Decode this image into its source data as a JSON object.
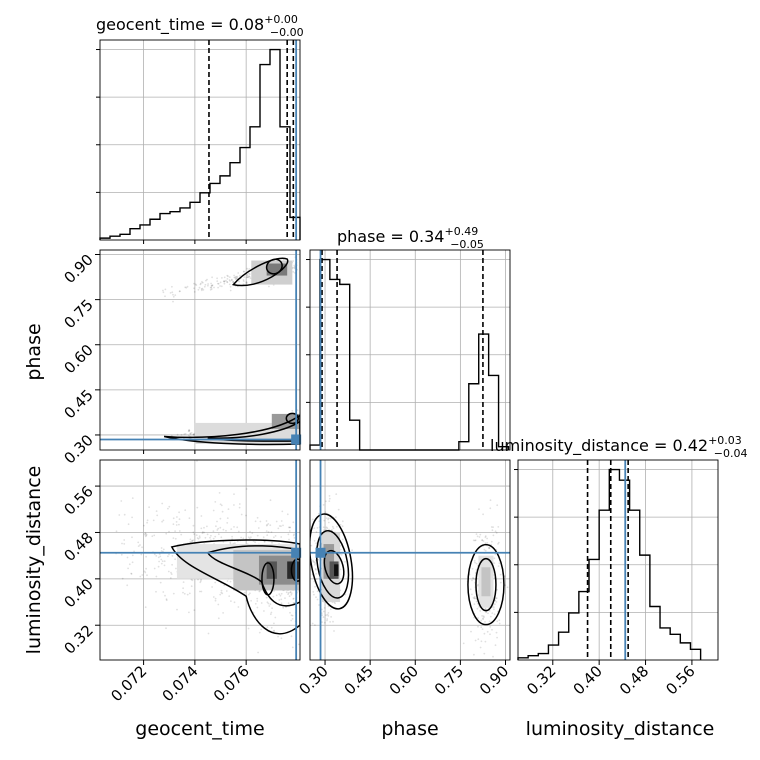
{
  "chart_data": {
    "type": "corner",
    "parameters": [
      "geocent_time",
      "phase",
      "luminosity_distance"
    ],
    "axis_labels": [
      "geocent_time",
      "phase",
      "luminosity_distance"
    ],
    "titles": [
      {
        "name": "geocent_time",
        "text": "geocent_time = 0.08",
        "sup": "+0.00",
        "sub": "−0.00"
      },
      {
        "name": "phase",
        "text": "phase = 0.34",
        "sup": "+0.49",
        "sub": "−0.05"
      },
      {
        "name": "luminosity_distance",
        "text": "luminosity_distance = 0.42",
        "sup": "+0.03",
        "sub": "−0.04"
      }
    ],
    "ranges": [
      [
        0.0703,
        0.0781
      ],
      [
        0.25,
        0.915
      ],
      [
        0.26,
        0.605
      ]
    ],
    "ticks": {
      "geocent_time": [
        0.072,
        0.074,
        0.076
      ],
      "phase": [
        0.3,
        0.45,
        0.6,
        0.75,
        0.9
      ],
      "luminosity_distance": [
        0.32,
        0.4,
        0.48,
        0.56
      ]
    },
    "tick_labels": {
      "geocent_time": [
        "0.072",
        "0.074",
        "0.076"
      ],
      "phase": [
        "0.30",
        "0.45",
        "0.60",
        "0.75",
        "0.90"
      ],
      "luminosity_distance": [
        "0.32",
        "0.40",
        "0.48",
        "0.56"
      ]
    },
    "truths": {
      "geocent_time": 0.07795,
      "phase": 0.285,
      "luminosity_distance": 0.445
    },
    "quantiles": {
      "geocent_time": [
        0.07455,
        0.0776,
        0.07784
      ],
      "phase": [
        0.29,
        0.34,
        0.825
      ],
      "luminosity_distance": [
        0.38,
        0.42,
        0.45
      ]
    },
    "histograms": {
      "geocent_time": {
        "edges": [
          0.0703,
          0.07069,
          0.07108,
          0.07147,
          0.07186,
          0.07225,
          0.07264,
          0.07303,
          0.07342,
          0.07381,
          0.0742,
          0.07459,
          0.07498,
          0.07537,
          0.07576,
          0.07615,
          0.07654,
          0.07693,
          0.07732,
          0.07771,
          0.0781
        ],
        "counts": [
          1,
          2,
          3,
          6,
          8,
          11,
          14,
          15,
          17,
          20,
          25,
          30,
          34,
          41,
          49,
          60,
          93,
          101,
          60,
          12
        ]
      },
      "phase": {
        "edges": [
          0.25,
          0.283,
          0.316,
          0.349,
          0.382,
          0.415,
          0.448,
          0.481,
          0.514,
          0.547,
          0.58,
          0.613,
          0.646,
          0.679,
          0.712,
          0.745,
          0.778,
          0.811,
          0.844,
          0.877,
          0.91
        ],
        "counts": [
          3,
          115,
          103,
          100,
          18,
          0,
          0,
          0,
          0,
          0,
          0,
          0,
          0,
          0,
          0,
          5,
          40,
          70,
          45,
          2
        ]
      },
      "luminosity_distance": {
        "edges": [
          0.26,
          0.2775,
          0.295,
          0.3125,
          0.33,
          0.3475,
          0.365,
          0.3825,
          0.4,
          0.4175,
          0.435,
          0.4525,
          0.47,
          0.4875,
          0.505,
          0.5225,
          0.54,
          0.5575,
          0.575
        ],
        "counts": [
          1,
          2,
          3,
          7,
          13,
          22,
          32,
          47,
          70,
          89,
          84,
          70,
          49,
          25,
          15,
          12,
          8,
          5
        ]
      }
    }
  }
}
